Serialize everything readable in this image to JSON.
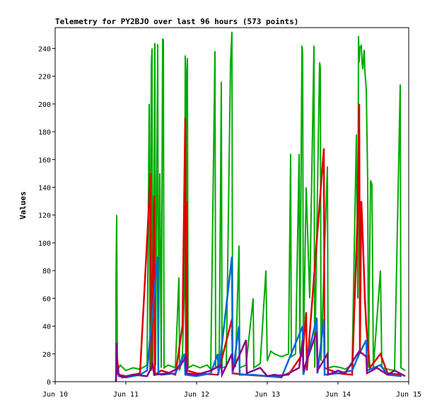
{
  "chart_data": {
    "type": "line",
    "title": "Telemetry for PY2BJO over last 96 hours (573 points)",
    "xlabel": "",
    "ylabel": "Values",
    "xlim": [
      "Jun 10",
      "Jun 15"
    ],
    "ylim": [
      0,
      255
    ],
    "x_ticks": [
      "Jun 10",
      "Jun 11",
      "Jun 12",
      "Jun 13",
      "Jun 14",
      "Jun 15"
    ],
    "y_ticks": [
      0,
      20,
      40,
      60,
      80,
      100,
      120,
      140,
      160,
      180,
      200,
      220,
      240
    ],
    "grid": false,
    "legend": "none",
    "series": [
      {
        "color": "#00aa00",
        "points": [
          [
            10.86,
            0
          ],
          [
            10.86,
            70
          ],
          [
            10.87,
            120
          ],
          [
            10.88,
            8
          ],
          [
            10.92,
            12
          ],
          [
            11.0,
            8
          ],
          [
            11.1,
            10
          ],
          [
            11.2,
            9
          ],
          [
            11.3,
            12
          ],
          [
            11.33,
            200
          ],
          [
            11.34,
            8
          ],
          [
            11.36,
            228
          ],
          [
            11.37,
            240
          ],
          [
            11.38,
            10
          ],
          [
            11.4,
            150
          ],
          [
            11.41,
            244
          ],
          [
            11.42,
            12
          ],
          [
            11.45,
            243
          ],
          [
            11.46,
            20
          ],
          [
            11.48,
            150
          ],
          [
            11.5,
            10
          ],
          [
            11.52,
            247
          ],
          [
            11.53,
            246
          ],
          [
            11.54,
            10
          ],
          [
            11.6,
            12
          ],
          [
            11.7,
            10
          ],
          [
            11.75,
            75
          ],
          [
            11.76,
            8
          ],
          [
            11.8,
            20
          ],
          [
            11.83,
            70
          ],
          [
            11.84,
            235
          ],
          [
            11.85,
            60
          ],
          [
            11.86,
            222
          ],
          [
            11.87,
            233
          ],
          [
            11.88,
            10
          ],
          [
            11.95,
            12
          ],
          [
            12.05,
            10
          ],
          [
            12.15,
            12
          ],
          [
            12.2,
            9
          ],
          [
            12.26,
            238
          ],
          [
            12.27,
            10
          ],
          [
            12.32,
            12
          ],
          [
            12.35,
            216
          ],
          [
            12.36,
            10
          ],
          [
            12.42,
            11
          ],
          [
            12.48,
            230
          ],
          [
            12.5,
            252
          ],
          [
            12.51,
            10
          ],
          [
            12.55,
            11
          ],
          [
            12.6,
            98
          ],
          [
            12.61,
            10
          ],
          [
            12.7,
            12
          ],
          [
            12.8,
            60
          ],
          [
            12.81,
            10
          ],
          [
            12.9,
            13
          ],
          [
            12.98,
            80
          ],
          [
            13.0,
            15
          ],
          [
            13.05,
            22
          ],
          [
            13.1,
            20
          ],
          [
            13.2,
            18
          ],
          [
            13.3,
            20
          ],
          [
            13.33,
            164
          ],
          [
            13.34,
            18
          ],
          [
            13.4,
            20
          ],
          [
            13.45,
            164
          ],
          [
            13.46,
            20
          ],
          [
            13.49,
            242
          ],
          [
            13.5,
            235
          ],
          [
            13.51,
            20
          ],
          [
            13.55,
            140
          ],
          [
            13.6,
            60
          ],
          [
            13.66,
            242
          ],
          [
            13.67,
            10
          ],
          [
            13.72,
            170
          ],
          [
            13.74,
            230
          ],
          [
            13.75,
            226
          ],
          [
            13.76,
            15
          ],
          [
            13.8,
            80
          ],
          [
            13.85,
            155
          ],
          [
            13.86,
            10
          ],
          [
            13.95,
            11
          ],
          [
            14.05,
            10
          ],
          [
            14.1,
            9
          ],
          [
            14.2,
            12
          ],
          [
            14.26,
            178
          ],
          [
            14.28,
            60
          ],
          [
            14.29,
            249
          ],
          [
            14.3,
            230
          ],
          [
            14.31,
            241
          ],
          [
            14.33,
            242
          ],
          [
            14.34,
            230
          ],
          [
            14.35,
            225
          ],
          [
            14.37,
            239
          ],
          [
            14.38,
            224
          ],
          [
            14.4,
            210
          ],
          [
            14.42,
            144
          ],
          [
            14.43,
            10
          ],
          [
            14.46,
            145
          ],
          [
            14.48,
            142
          ],
          [
            14.5,
            10
          ],
          [
            14.6,
            80
          ],
          [
            14.62,
            10
          ],
          [
            14.7,
            9
          ],
          [
            14.8,
            8
          ],
          [
            14.88,
            214
          ],
          [
            14.89,
            10
          ],
          [
            14.95,
            8
          ]
        ]
      },
      {
        "color": "#dd0000",
        "points": [
          [
            10.86,
            0
          ],
          [
            10.87,
            20
          ],
          [
            10.9,
            5
          ],
          [
            11.0,
            4
          ],
          [
            11.2,
            6
          ],
          [
            11.35,
            150
          ],
          [
            11.36,
            8
          ],
          [
            11.4,
            134
          ],
          [
            11.41,
            5
          ],
          [
            11.5,
            8
          ],
          [
            11.7,
            5
          ],
          [
            11.8,
            40
          ],
          [
            11.84,
            190
          ],
          [
            11.85,
            10
          ],
          [
            11.86,
            130
          ],
          [
            11.87,
            8
          ],
          [
            12.0,
            6
          ],
          [
            12.3,
            5
          ],
          [
            12.5,
            45
          ],
          [
            12.51,
            6
          ],
          [
            12.7,
            5
          ],
          [
            13.0,
            4
          ],
          [
            13.3,
            5
          ],
          [
            13.5,
            20
          ],
          [
            13.55,
            50
          ],
          [
            13.56,
            8
          ],
          [
            13.8,
            168
          ],
          [
            13.81,
            10
          ],
          [
            14.0,
            6
          ],
          [
            14.2,
            5
          ],
          [
            14.28,
            125
          ],
          [
            14.3,
            200
          ],
          [
            14.31,
            20
          ],
          [
            14.33,
            130
          ],
          [
            14.34,
            118
          ],
          [
            14.36,
            90
          ],
          [
            14.38,
            60
          ],
          [
            14.4,
            40
          ],
          [
            14.45,
            10
          ],
          [
            14.6,
            20
          ],
          [
            14.7,
            6
          ],
          [
            14.9,
            5
          ]
        ]
      },
      {
        "color": "#0066dd",
        "points": [
          [
            10.86,
            0
          ],
          [
            10.87,
            12
          ],
          [
            10.9,
            4
          ],
          [
            11.0,
            3
          ],
          [
            11.2,
            5
          ],
          [
            11.3,
            8
          ],
          [
            11.45,
            90
          ],
          [
            11.46,
            6
          ],
          [
            11.5,
            5
          ],
          [
            11.7,
            6
          ],
          [
            11.83,
            20
          ],
          [
            11.84,
            5
          ],
          [
            12.0,
            4
          ],
          [
            12.2,
            6
          ],
          [
            12.3,
            20
          ],
          [
            12.31,
            5
          ],
          [
            12.5,
            90
          ],
          [
            12.51,
            6
          ],
          [
            12.6,
            40
          ],
          [
            12.61,
            5
          ],
          [
            12.8,
            5
          ],
          [
            13.0,
            4
          ],
          [
            13.2,
            3
          ],
          [
            13.5,
            40
          ],
          [
            13.51,
            5
          ],
          [
            13.7,
            46
          ],
          [
            13.71,
            6
          ],
          [
            13.8,
            45
          ],
          [
            13.81,
            5
          ],
          [
            14.0,
            6
          ],
          [
            14.2,
            8
          ],
          [
            14.3,
            20
          ],
          [
            14.4,
            30
          ],
          [
            14.41,
            8
          ],
          [
            14.6,
            12
          ],
          [
            14.7,
            5
          ],
          [
            14.9,
            4
          ]
        ]
      },
      {
        "color": "#880088",
        "points": [
          [
            10.86,
            0
          ],
          [
            10.87,
            28
          ],
          [
            10.88,
            6
          ],
          [
            10.95,
            3
          ],
          [
            11.1,
            5
          ],
          [
            11.3,
            4
          ],
          [
            11.38,
            12
          ],
          [
            11.4,
            5
          ],
          [
            11.6,
            6
          ],
          [
            11.75,
            10
          ],
          [
            11.85,
            18
          ],
          [
            11.86,
            6
          ],
          [
            12.0,
            5
          ],
          [
            12.2,
            8
          ],
          [
            12.35,
            12
          ],
          [
            12.36,
            5
          ],
          [
            12.5,
            20
          ],
          [
            12.51,
            8
          ],
          [
            12.7,
            30
          ],
          [
            12.71,
            6
          ],
          [
            12.9,
            10
          ],
          [
            13.0,
            4
          ],
          [
            13.1,
            5
          ],
          [
            13.2,
            4
          ],
          [
            13.3,
            6
          ],
          [
            13.45,
            10
          ],
          [
            13.5,
            30
          ],
          [
            13.51,
            8
          ],
          [
            13.7,
            36
          ],
          [
            13.71,
            8
          ],
          [
            13.85,
            20
          ],
          [
            13.86,
            5
          ],
          [
            14.0,
            8
          ],
          [
            14.1,
            6
          ],
          [
            14.3,
            22
          ],
          [
            14.4,
            18
          ],
          [
            14.41,
            6
          ],
          [
            14.55,
            10
          ],
          [
            14.7,
            5
          ],
          [
            14.8,
            8
          ],
          [
            14.95,
            4
          ]
        ]
      }
    ]
  }
}
